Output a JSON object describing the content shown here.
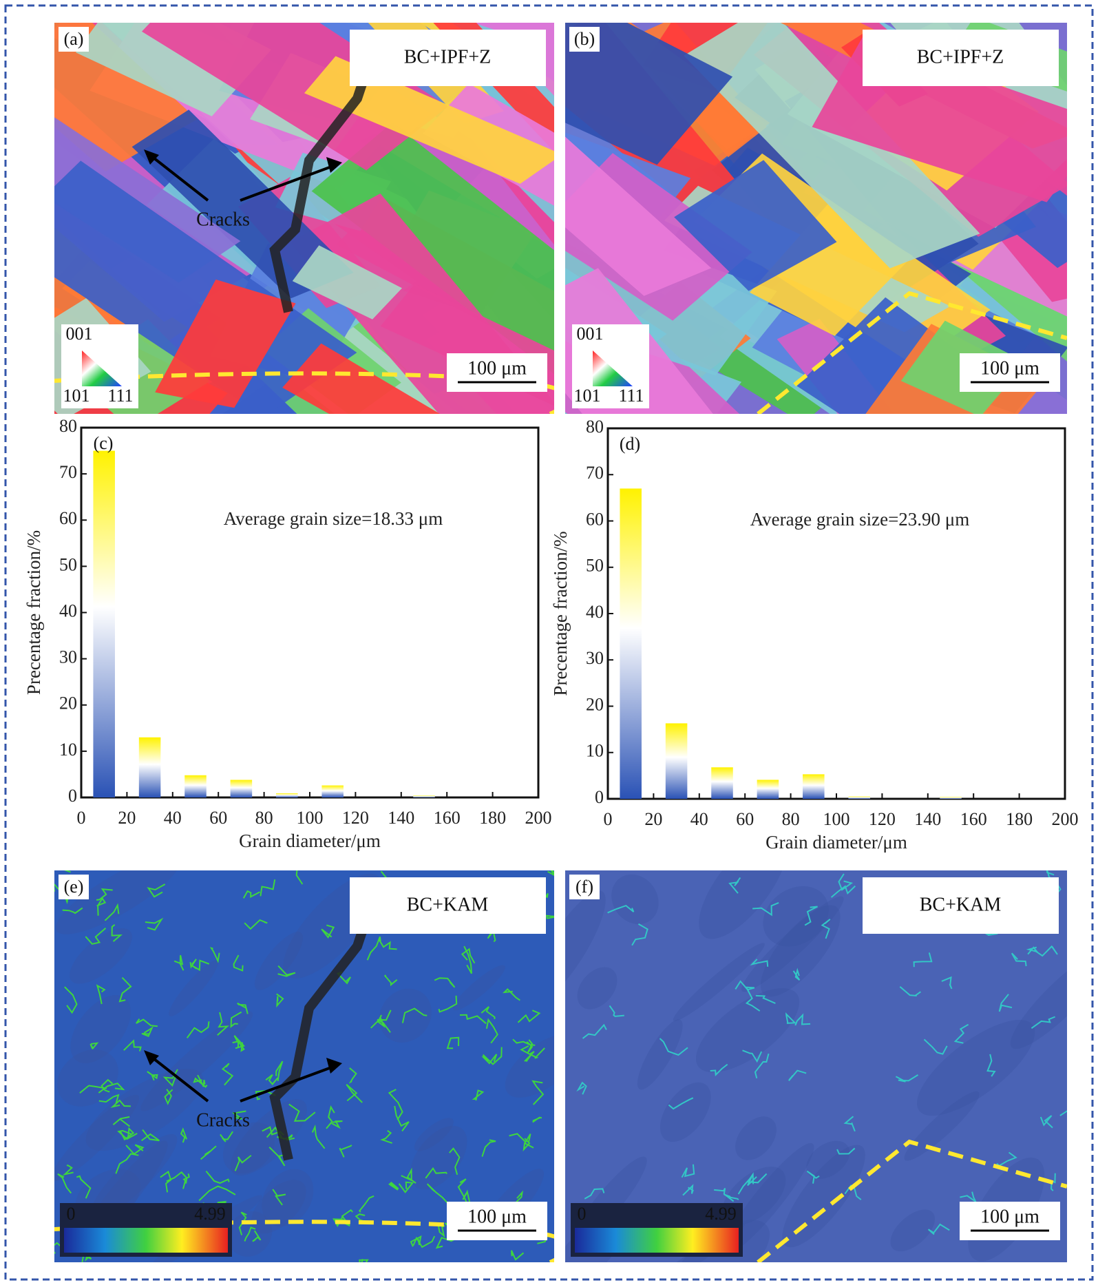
{
  "panels": [
    {
      "label": "(a)",
      "title": "BC+IPF+Z",
      "annotation": "Cracks",
      "scale_bar": "100 μm",
      "ipf_key": [
        "001",
        "101",
        "111"
      ]
    },
    {
      "label": "(b)",
      "title": "BC+IPF+Z",
      "scale_bar": "100 μm",
      "ipf_key": [
        "001",
        "101",
        "111"
      ]
    },
    {
      "label": "(e)",
      "title": "BC+KAM",
      "annotation": "Cracks",
      "scale_bar": "100 μm",
      "kam_key": [
        "0",
        "4.99"
      ]
    },
    {
      "label": "(f)",
      "title": "BC+KAM",
      "scale_bar": "100 μm",
      "kam_key": [
        "0",
        "4.99"
      ]
    }
  ],
  "chart_data": [
    {
      "type": "bar",
      "panel_label": "(c)",
      "annotation": "Average grain size=18.33 μm",
      "x_label": "Grain diameter/μm",
      "y_label": "Precentage fraction/%",
      "x": [
        10,
        30,
        50,
        70,
        90,
        110,
        130,
        150,
        170,
        190
      ],
      "values": [
        75,
        13,
        4.8,
        3.8,
        0.9,
        2.6,
        0,
        0.4,
        0,
        0
      ],
      "gradient": [
        "#fff200",
        "#ffffff",
        "#2a52b5"
      ],
      "xlim": [
        0,
        200
      ],
      "xticks": [
        0,
        20,
        40,
        60,
        80,
        100,
        120,
        140,
        160,
        180,
        200
      ],
      "ylim": [
        0,
        80
      ],
      "yticks": [
        0,
        10,
        20,
        30,
        40,
        50,
        60,
        70,
        80
      ]
    },
    {
      "type": "bar",
      "panel_label": "(d)",
      "annotation": "Average grain size=23.90 μm",
      "x_label": "Grain diameter/μm",
      "y_label": "Precentage fraction/%",
      "x": [
        10,
        30,
        50,
        70,
        90,
        110,
        130,
        150,
        170,
        190
      ],
      "values": [
        67,
        16.3,
        6.8,
        4.1,
        5.3,
        0.5,
        0,
        0.4,
        0,
        0
      ],
      "gradient": [
        "#fff200",
        "#ffffff",
        "#2a52b5"
      ],
      "xlim": [
        0,
        200
      ],
      "xticks": [
        0,
        20,
        40,
        60,
        80,
        100,
        120,
        140,
        160,
        180,
        200
      ],
      "ylim": [
        0,
        80
      ],
      "yticks": [
        0,
        10,
        20,
        30,
        40,
        50,
        60,
        70,
        80
      ]
    }
  ]
}
